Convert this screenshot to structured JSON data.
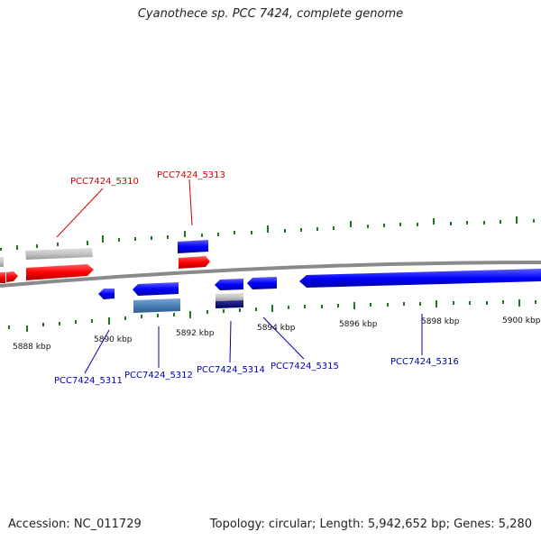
{
  "title": "Cyanothece sp. PCC 7424, complete genome",
  "footer": {
    "accession": "Accession: NC_011729",
    "stats": "Topology: circular; Length: 5,942,652 bp; Genes: 5,280"
  },
  "ticks": [
    "5888 kbp",
    "5890 kbp",
    "5892 kbp",
    "5894 kbp",
    "5896 kbp",
    "5898 kbp",
    "5900 kbp"
  ],
  "genes": {
    "g5310": "PCC7424_5310",
    "g5313": "PCC7424_5313",
    "g5311": "PCC7424_5311",
    "g5312": "PCC7424_5312",
    "g5314": "PCC7424_5314",
    "g5315": "PCC7424_5315",
    "g5316": "PCC7424_5316"
  },
  "colors": {
    "forward": "#ff0000",
    "reverse": "#0000ff",
    "tick": "#1a7a1a",
    "backbone": "#8a8a8a",
    "label_red": "#d40000",
    "label_blue": "#0000b0"
  }
}
